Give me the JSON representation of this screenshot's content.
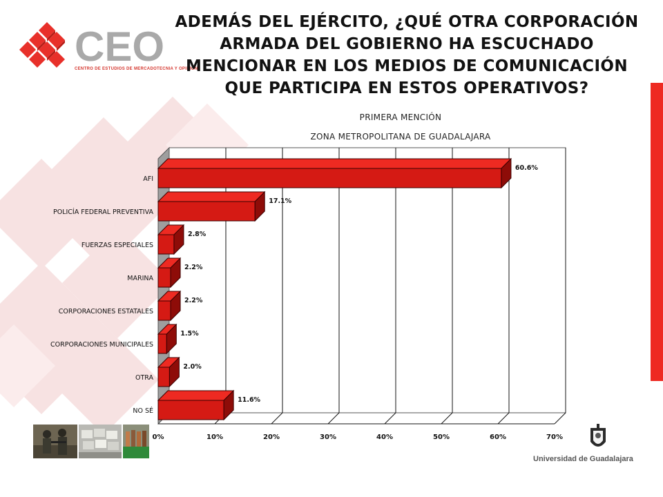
{
  "header": {
    "title_lines": [
      "ADEMÁS DEL EJÉRCITO, ¿QUÉ OTRA CORPORACIÓN",
      "ARMADA DEL GOBIERNO HA ESCUCHADO",
      "MENCIONAR EN LOS MEDIOS DE COMUNICACIÓN",
      "QUE PARTICIPA EN ESTOS OPERATIVOS?"
    ],
    "subtitle1": "PRIMERA MENCIÓN",
    "subtitle2": "ZONA METROPOLITANA DE GUADALAJARA"
  },
  "logo": {
    "text": "CEO",
    "tagline": "CENTRO DE ESTUDIOS DE MERCADOTECNIA Y OPINIÓN",
    "color": "#e8302a"
  },
  "footer": {
    "university": "Universidad de Guadalajara"
  },
  "chart_data": {
    "type": "bar",
    "orientation": "horizontal",
    "title": "ADEMÁS DEL EJÉRCITO, ¿QUÉ OTRA CORPORACIÓN ARMADA DEL GOBIERNO HA ESCUCHADO MENCIONAR EN LOS MEDIOS DE COMUNICACIÓN QUE PARTICIPA EN ESTOS OPERATIVOS?",
    "subtitle": "PRIMERA MENCIÓN / ZONA METROPOLITANA DE GUADALAJARA",
    "categories": [
      "AFI",
      "POLICÍA FEDERAL PREVENTIVA",
      "FUERZAS ESPECIALES",
      "MARINA",
      "CORPORACIONES ESTATALES",
      "CORPORACIONES MUNICIPALES",
      "OTRA",
      "NO SÉ"
    ],
    "values": [
      60.6,
      17.1,
      2.8,
      2.2,
      2.2,
      1.5,
      2.0,
      11.6
    ],
    "value_labels": [
      "60.6%",
      "17.1%",
      "2.8%",
      "2.2%",
      "2.2%",
      "1.5%",
      "2.0%",
      "11.6%"
    ],
    "xticks": [
      "0%",
      "10%",
      "20%",
      "30%",
      "40%",
      "50%",
      "60%",
      "70%"
    ],
    "xlim": [
      0,
      70
    ],
    "grid": true,
    "style": "3d",
    "bar_color": "#d51a14",
    "xlabel": "",
    "ylabel": ""
  }
}
